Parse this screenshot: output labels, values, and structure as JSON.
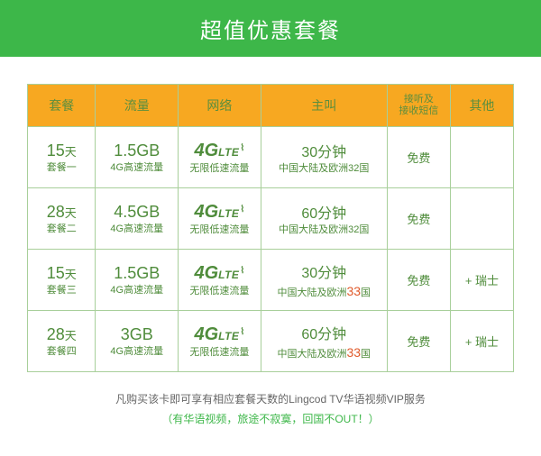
{
  "colors": {
    "banner_bg": "#3db749",
    "header_bg": "#f7a821",
    "header_text": "#5b8e3e",
    "border": "#a8cf9a",
    "body_text": "#4f8c3b",
    "highlight": "#e05a2b",
    "footer_text": "#666666",
    "footer_accent": "#3db749"
  },
  "banner": {
    "title": "超值优惠套餐"
  },
  "headers": {
    "col0": "套餐",
    "col1": "流量",
    "col2": "网络",
    "col3": "主叫",
    "col4": "接听及\n接收短信",
    "col5": "其他"
  },
  "network": {
    "logo_4": "4",
    "logo_g": "G",
    "logo_lte": "LTE",
    "logo_wifi": "⌇",
    "sub": "无限低速流量"
  },
  "rows": [
    {
      "days": "15",
      "days_unit": "天",
      "plan": "套餐一",
      "data": "1.5GB",
      "data_sub": "4G高速流量",
      "call": "30分钟",
      "call_sub_plain": "中国大陆及欧洲32国",
      "call_sub_num": "",
      "free": "免费",
      "other": ""
    },
    {
      "days": "28",
      "days_unit": "天",
      "plan": "套餐二",
      "data": "4.5GB",
      "data_sub": "4G高速流量",
      "call": "60分钟",
      "call_sub_plain": "中国大陆及欧洲32国",
      "call_sub_num": "",
      "free": "免费",
      "other": ""
    },
    {
      "days": "15",
      "days_unit": "天",
      "plan": "套餐三",
      "data": "1.5GB",
      "data_sub": "4G高速流量",
      "call": "30分钟",
      "call_sub_prefix": "中国大陆及欧洲",
      "call_sub_num": "33",
      "call_sub_suffix": "国",
      "free": "免费",
      "other": "+ 瑞士"
    },
    {
      "days": "28",
      "days_unit": "天",
      "plan": "套餐四",
      "data": "3GB",
      "data_sub": "4G高速流量",
      "call": "60分钟",
      "call_sub_prefix": "中国大陆及欧洲",
      "call_sub_num": "33",
      "call_sub_suffix": "国",
      "free": "免费",
      "other": "+ 瑞士"
    }
  ],
  "footer": {
    "line1": "凡购买该卡即可享有相应套餐天数的Lingcod TV华语视频VIP服务",
    "line2": "（有华语视频，旅途不寂寞，回国不OUT！）"
  }
}
